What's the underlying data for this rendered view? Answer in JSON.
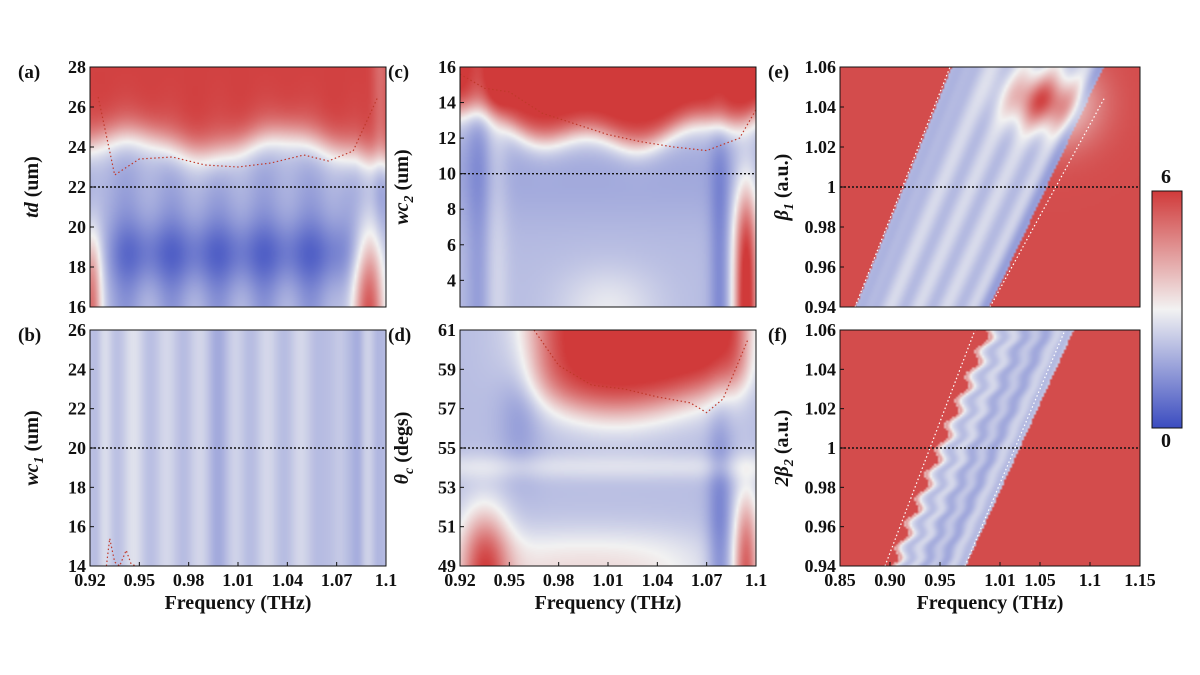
{
  "colors": {
    "low": "#3b4cc0",
    "mid": "#f2f2f2",
    "high": "#d03a3a",
    "refline": "#111111",
    "contour": "#c0392b"
  },
  "colorbar": {
    "max_label": "6",
    "min_label": "0",
    "range": [
      0,
      6
    ]
  },
  "chart_data": [
    {
      "id": "a",
      "type": "heatmap",
      "panel_label": "(a)",
      "ylabel_italic": "td",
      "ylabel_plain": " (um)",
      "xlabel": "",
      "xlim": [
        0.92,
        1.1
      ],
      "ylim": [
        16,
        28
      ],
      "xticks": [],
      "xtick_labels": [],
      "yticks": [
        16,
        18,
        20,
        22,
        24,
        26,
        28
      ],
      "ytick_labels": [
        "16",
        "18",
        "20",
        "22",
        "24",
        "26",
        "28"
      ],
      "reference_y": 22,
      "contour_curve": {
        "x": [
          0.925,
          0.935,
          0.95,
          0.97,
          0.99,
          1.01,
          1.03,
          1.05,
          1.065,
          1.08,
          1.095
        ],
        "y": [
          26.5,
          22.6,
          23.4,
          23.5,
          23.1,
          23.0,
          23.2,
          23.6,
          23.3,
          23.8,
          26.5
        ]
      }
    },
    {
      "id": "b",
      "type": "heatmap",
      "panel_label": "(b)",
      "ylabel_italic": "wc",
      "ylabel_sub": "1",
      "ylabel_plain": " (um)",
      "xlabel": "Frequency (THz)",
      "xlim": [
        0.92,
        1.1
      ],
      "ylim": [
        14,
        26
      ],
      "xticks": [
        0.92,
        0.95,
        0.98,
        1.01,
        1.04,
        1.07,
        1.1
      ],
      "xtick_labels": [
        "0.92",
        "0.95",
        "0.98",
        "1.01",
        "1.04",
        "1.07",
        "1.1"
      ],
      "yticks": [
        14,
        16,
        18,
        20,
        22,
        24,
        26
      ],
      "ytick_labels": [
        "14",
        "16",
        "18",
        "20",
        "22",
        "24",
        "26"
      ],
      "reference_y": 20,
      "contour_curve": {
        "x": [
          0.93,
          0.932,
          0.935,
          0.938,
          0.942,
          0.945,
          0.948
        ],
        "y": [
          14,
          15.4,
          14.2,
          14,
          14.8,
          14.1,
          14
        ]
      }
    },
    {
      "id": "c",
      "type": "heatmap",
      "panel_label": "(c)",
      "ylabel_italic": "wc",
      "ylabel_sub": "2",
      "ylabel_plain": " (um)",
      "xlabel": "",
      "xlim": [
        0.92,
        1.1
      ],
      "ylim": [
        2.5,
        16
      ],
      "xticks": [],
      "xtick_labels": [],
      "yticks": [
        4,
        6,
        8,
        10,
        12,
        14,
        16
      ],
      "ytick_labels": [
        "4",
        "6",
        "8",
        "10",
        "12",
        "14",
        "16"
      ],
      "reference_y": 10,
      "contour_curve": {
        "x": [
          0.92,
          0.935,
          0.95,
          0.97,
          0.99,
          1.01,
          1.03,
          1.05,
          1.07,
          1.09,
          1.1
        ],
        "y": [
          15.6,
          14.8,
          14.6,
          13.4,
          12.8,
          12.2,
          11.8,
          11.5,
          11.3,
          12.0,
          13.6
        ]
      }
    },
    {
      "id": "d",
      "type": "heatmap",
      "panel_label": "(d)",
      "ylabel_italic": "θ",
      "ylabel_sub": "c",
      "ylabel_plain": " (degs)",
      "xlabel": "Frequency (THz)",
      "xlim": [
        0.92,
        1.1
      ],
      "ylim": [
        49,
        61
      ],
      "xticks": [
        0.92,
        0.95,
        0.98,
        1.01,
        1.04,
        1.07,
        1.1
      ],
      "xtick_labels": [
        "0.92",
        "0.95",
        "0.98",
        "1.01",
        "1.04",
        "1.07",
        "1.1"
      ],
      "yticks": [
        49,
        51,
        53,
        55,
        57,
        59,
        61
      ],
      "ytick_labels": [
        "49",
        "51",
        "53",
        "55",
        "57",
        "59",
        "61"
      ],
      "reference_y": 55,
      "contour_curve": {
        "x": [
          0.965,
          0.98,
          1.0,
          1.02,
          1.04,
          1.06,
          1.07,
          1.08,
          1.095
        ],
        "y": [
          61,
          59.2,
          58.2,
          58.0,
          57.6,
          57.3,
          56.8,
          57.5,
          60.5
        ]
      }
    },
    {
      "id": "e",
      "type": "heatmap",
      "panel_label": "(e)",
      "ylabel_italic": "β",
      "ylabel_sub": "1",
      "ylabel_plain": " (a.u.)",
      "xlabel": "",
      "xlim": [
        0.85,
        1.15
      ],
      "ylim": [
        0.94,
        1.06
      ],
      "xticks": [],
      "xtick_labels": [],
      "yticks": [
        0.94,
        0.96,
        0.98,
        1.0,
        1.02,
        1.04,
        1.06
      ],
      "ytick_labels": [
        "0.94",
        "0.96",
        "0.98",
        "1",
        "1.02",
        "1.04",
        "1.06"
      ],
      "reference_y": 1.0,
      "band_left": [
        [
          0.865,
          0.94
        ],
        [
          0.96,
          1.06
        ]
      ],
      "band_right": [
        [
          1.0,
          0.94
        ],
        [
          1.115,
          1.045
        ]
      ]
    },
    {
      "id": "f",
      "type": "heatmap",
      "panel_label": "(f)",
      "ylabel_italic": "2β",
      "ylabel_sub": "2",
      "ylabel_plain": " (a.u.)",
      "xlabel": "Frequency (THz)",
      "xlim": [
        0.85,
        1.15
      ],
      "ylim": [
        0.94,
        1.06
      ],
      "xticks": [
        0.85,
        0.9,
        0.95,
        1.01,
        1.05,
        1.1,
        1.15
      ],
      "xtick_labels": [
        "0.85",
        "0.90",
        "0.95",
        "1.01",
        "1.05",
        "1.1",
        "1.15"
      ],
      "yticks": [
        0.94,
        0.96,
        0.98,
        1.0,
        1.02,
        1.04,
        1.06
      ],
      "ytick_labels": [
        "0.94",
        "0.96",
        "0.98",
        "1",
        "1.02",
        "1.04",
        "1.06"
      ],
      "reference_y": 1.0,
      "band_left": [
        [
          0.895,
          0.94
        ],
        [
          0.985,
          1.06
        ]
      ],
      "band_right": [
        [
          0.975,
          0.94
        ],
        [
          1.075,
          1.06
        ]
      ]
    }
  ]
}
